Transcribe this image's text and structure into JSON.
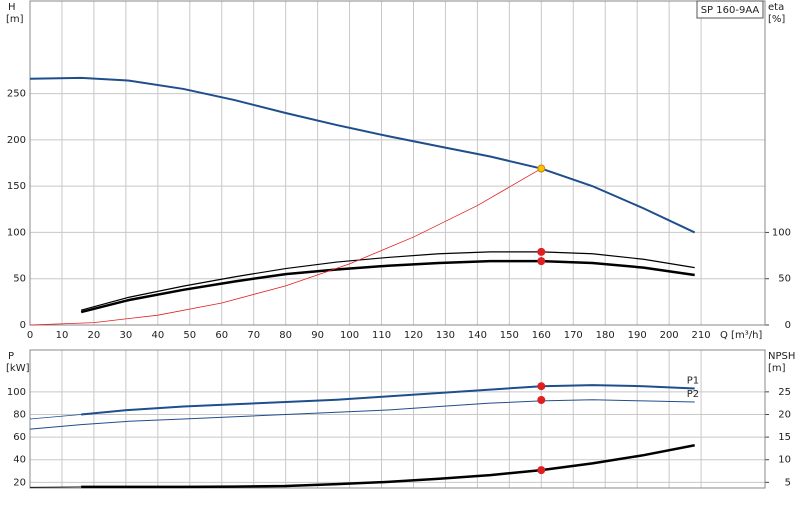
{
  "chart_data": [
    {
      "type": "line",
      "badge": "SP 160-9AA",
      "y_label": "H",
      "y_unit": "[m]",
      "y2_label": "eta",
      "y2_unit": "[%]",
      "x_label": "Q [m³/h]",
      "xlim": [
        0,
        230
      ],
      "xticks": [
        0,
        10,
        20,
        30,
        40,
        50,
        60,
        70,
        80,
        90,
        100,
        110,
        120,
        130,
        140,
        150,
        160,
        170,
        180,
        190,
        200,
        210
      ],
      "ylim": [
        0,
        350
      ],
      "yticks": [
        0,
        50,
        100,
        150,
        200,
        250
      ],
      "y2lim": [
        0,
        350
      ],
      "y2ticks": [
        0,
        50,
        100
      ],
      "grid": true,
      "series": [
        {
          "color": "#1f4e8c",
          "width": 2,
          "x": [
            0,
            16,
            31,
            48,
            64,
            80,
            96,
            112,
            128,
            144,
            160,
            176,
            192,
            208
          ],
          "values": [
            266,
            267,
            264,
            255,
            243,
            229,
            216,
            204,
            193,
            182,
            169,
            150,
            126,
            100
          ]
        },
        {
          "color": "#000000",
          "width": 1.2,
          "axis": "y2",
          "x": [
            16,
            31,
            48,
            64,
            80,
            96,
            112,
            128,
            144,
            160,
            176,
            192,
            208
          ],
          "values": [
            16,
            30,
            42,
            52,
            61,
            68,
            73,
            77,
            79,
            79,
            77,
            71,
            62
          ]
        },
        {
          "color": "#000000",
          "width": 2.5,
          "axis": "y2",
          "x": [
            16,
            31,
            48,
            64,
            80,
            96,
            112,
            128,
            144,
            160,
            176,
            192,
            208
          ],
          "values": [
            14,
            27,
            38,
            47,
            55,
            60,
            64,
            67,
            69,
            69,
            67,
            62,
            54
          ]
        },
        {
          "color": "#e02020",
          "width": 0.8,
          "x": [
            0,
            20,
            40,
            60,
            80,
            100,
            120,
            140,
            160
          ],
          "values": [
            0,
            2.6,
            10.6,
            23.8,
            42.3,
            66,
            95,
            129,
            169
          ]
        },
        {
          "color": "#f5c400",
          "marker": true,
          "x": [
            160
          ],
          "values": [
            169
          ]
        },
        {
          "color": "#e02020",
          "marker": true,
          "axis": "y2",
          "x": [
            160
          ],
          "values": [
            79
          ]
        },
        {
          "color": "#e02020",
          "marker": true,
          "axis": "y2",
          "x": [
            160
          ],
          "values": [
            69
          ]
        }
      ]
    },
    {
      "type": "line",
      "y_label": "P",
      "y_unit": "[kW]",
      "y2_label": "NPSH",
      "y2_unit": "[m]",
      "xlim": [
        0,
        230
      ],
      "ylim": [
        15,
        137
      ],
      "yticks": [
        20,
        40,
        60,
        80,
        100
      ],
      "y2lim": [
        3.75,
        34.25
      ],
      "y2ticks": [
        5,
        10,
        15,
        20,
        25
      ],
      "grid": true,
      "series": [
        {
          "name": "P1",
          "color": "#1f4e8c",
          "width": 2,
          "x": [
            16,
            31,
            48,
            64,
            80,
            96,
            112,
            128,
            144,
            160,
            176,
            192,
            208
          ],
          "values": [
            80,
            84,
            87,
            89,
            91,
            93,
            96,
            99,
            102,
            105,
            106,
            105,
            103
          ]
        },
        {
          "color": "#1f4e8c",
          "width": 0.8,
          "x": [
            0,
            16
          ],
          "values": [
            76,
            80
          ]
        },
        {
          "name": "P2",
          "color": "#1f4e8c",
          "width": 1,
          "x": [
            0,
            16,
            31,
            48,
            64,
            80,
            96,
            112,
            128,
            144,
            160,
            176,
            192,
            208
          ],
          "values": [
            67,
            71,
            74,
            76,
            78,
            80,
            82,
            84,
            87,
            90,
            92,
            93,
            92,
            91
          ]
        },
        {
          "color": "#000000",
          "width": 2.5,
          "axis": "y2",
          "x": [
            16,
            31,
            48,
            64,
            80,
            96,
            112,
            128,
            144,
            160,
            176,
            192,
            208
          ],
          "values": [
            4,
            4,
            4,
            4.05,
            4.2,
            4.6,
            5.1,
            5.8,
            6.6,
            7.7,
            9.2,
            11,
            13.2
          ]
        },
        {
          "color": "#000000",
          "width": 0.8,
          "axis": "y2",
          "x": [
            0,
            16
          ],
          "values": [
            3.9,
            4
          ]
        },
        {
          "color": "#e02020",
          "marker": true,
          "x": [
            160
          ],
          "values": [
            105
          ]
        },
        {
          "color": "#e02020",
          "marker": true,
          "x": [
            160
          ],
          "values": [
            92.8
          ]
        },
        {
          "color": "#e02020",
          "marker": true,
          "axis": "y2",
          "x": [
            160
          ],
          "values": [
            7.7
          ]
        }
      ]
    }
  ]
}
